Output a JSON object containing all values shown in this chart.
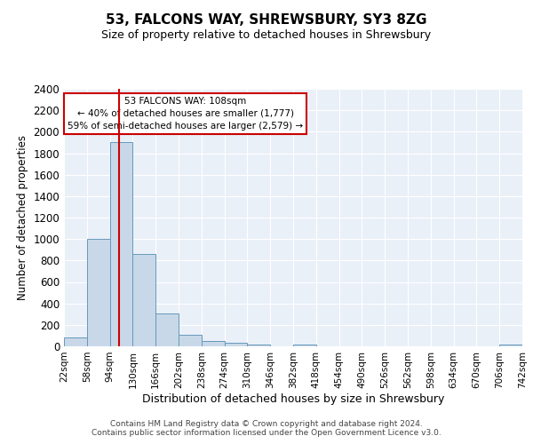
{
  "title": "53, FALCONS WAY, SHREWSBURY, SY3 8ZG",
  "subtitle": "Size of property relative to detached houses in Shrewsbury",
  "xlabel": "Distribution of detached houses by size in Shrewsbury",
  "ylabel": "Number of detached properties",
  "bin_edges": [
    22,
    58,
    94,
    130,
    166,
    202,
    238,
    274,
    310,
    346,
    382,
    418,
    454,
    490,
    526,
    562,
    598,
    634,
    670,
    706,
    742
  ],
  "bar_heights": [
    80,
    1000,
    1900,
    860,
    310,
    110,
    50,
    35,
    20,
    0,
    20,
    0,
    0,
    0,
    0,
    0,
    0,
    0,
    0,
    20
  ],
  "bar_color": "#c8d8e8",
  "bar_edge_color": "#6699bb",
  "red_line_x": 108,
  "ylim": [
    0,
    2400
  ],
  "yticks": [
    0,
    200,
    400,
    600,
    800,
    1000,
    1200,
    1400,
    1600,
    1800,
    2000,
    2200,
    2400
  ],
  "annotation_title": "53 FALCONS WAY: 108sqm",
  "annotation_line1": "← 40% of detached houses are smaller (1,777)",
  "annotation_line2": "59% of semi-detached houses are larger (2,579) →",
  "annotation_box_color": "#ffffff",
  "annotation_box_edge": "#cc0000",
  "bg_color": "#eaf0f8",
  "footer_line1": "Contains HM Land Registry data © Crown copyright and database right 2024.",
  "footer_line2": "Contains public sector information licensed under the Open Government Licence v3.0.",
  "title_fontsize": 11,
  "subtitle_fontsize": 9
}
